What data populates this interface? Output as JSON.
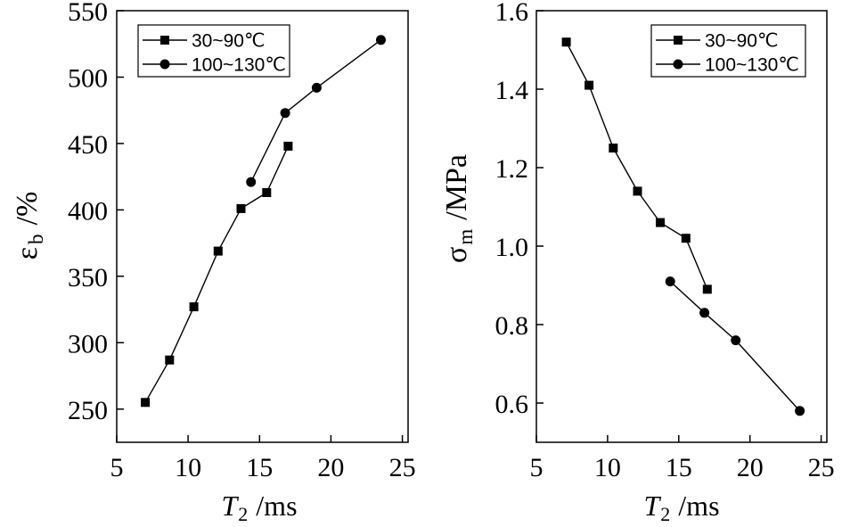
{
  "chart_data": [
    {
      "type": "line",
      "xlabel": {
        "symbol": "T",
        "subscript": "2",
        "unit": "/ms"
      },
      "ylabel": {
        "symbol": "ε",
        "subscript": "b",
        "unit": "/%"
      },
      "xlim": [
        5,
        25.4
      ],
      "ylim": [
        225,
        550
      ],
      "xticks": [
        "5",
        "10",
        "15",
        "20",
        "25"
      ],
      "yticks": [
        "250",
        "300",
        "350",
        "400",
        "450",
        "500",
        "550"
      ],
      "grid": false,
      "legend_position": "top-left",
      "series": [
        {
          "name": "30~90℃",
          "marker": "square",
          "color": "#000000",
          "x": [
            7.0,
            8.7,
            10.4,
            12.1,
            13.7,
            15.5,
            17.0
          ],
          "y": [
            255,
            287,
            327,
            369,
            401,
            413,
            448
          ]
        },
        {
          "name": "100~130℃",
          "marker": "circle",
          "color": "#000000",
          "x": [
            14.4,
            16.8,
            19.0,
            23.5
          ],
          "y": [
            421,
            473,
            492,
            528
          ]
        }
      ]
    },
    {
      "type": "line",
      "xlabel": {
        "symbol": "T",
        "subscript": "2",
        "unit": "/ms"
      },
      "ylabel": {
        "symbol": "σ",
        "subscript": "m",
        "unit": "/MPa"
      },
      "xlim": [
        5,
        25.4
      ],
      "ylim": [
        0.5,
        1.6
      ],
      "xticks": [
        "5",
        "10",
        "15",
        "20",
        "25"
      ],
      "yticks": [
        "0.6",
        "0.8",
        "1.0",
        "1.2",
        "1.4",
        "1.6"
      ],
      "grid": false,
      "legend_position": "top-right",
      "series": [
        {
          "name": "30~90℃",
          "marker": "square",
          "color": "#000000",
          "x": [
            7.1,
            8.7,
            10.4,
            12.1,
            13.7,
            15.5,
            17.0
          ],
          "y": [
            1.52,
            1.41,
            1.25,
            1.14,
            1.06,
            1.02,
            0.89
          ]
        },
        {
          "name": "100~130℃",
          "marker": "circle",
          "color": "#000000",
          "x": [
            14.4,
            16.8,
            19.0,
            23.5
          ],
          "y": [
            0.91,
            0.83,
            0.76,
            0.58
          ]
        }
      ]
    }
  ]
}
